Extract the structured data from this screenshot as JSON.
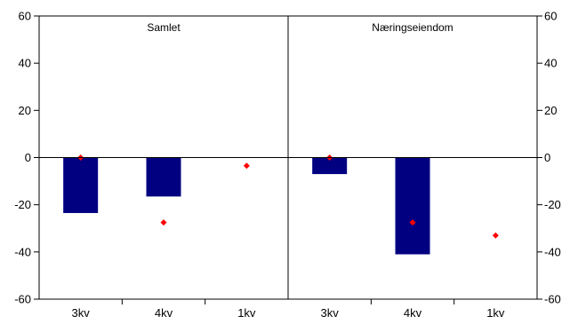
{
  "chart_data": {
    "type": "bar",
    "ylim": [
      -60,
      60
    ],
    "yticks": [
      60,
      40,
      20,
      0,
      -20,
      -40,
      -60
    ],
    "bar_color": "#000080",
    "marker_color": "#ff0000",
    "grid": false,
    "panels": [
      {
        "title": "Samlet",
        "categories": [
          "3kv",
          "4kv",
          "1kv"
        ],
        "bars": [
          -23.5,
          -16.5,
          null
        ],
        "markers": [
          0,
          -27.5,
          -3.5
        ]
      },
      {
        "title": "Næringseiendom",
        "categories": [
          "3kv",
          "4kv",
          "1kv"
        ],
        "bars": [
          -7,
          -41,
          null
        ],
        "markers": [
          0,
          -27.5,
          -33
        ]
      }
    ]
  }
}
